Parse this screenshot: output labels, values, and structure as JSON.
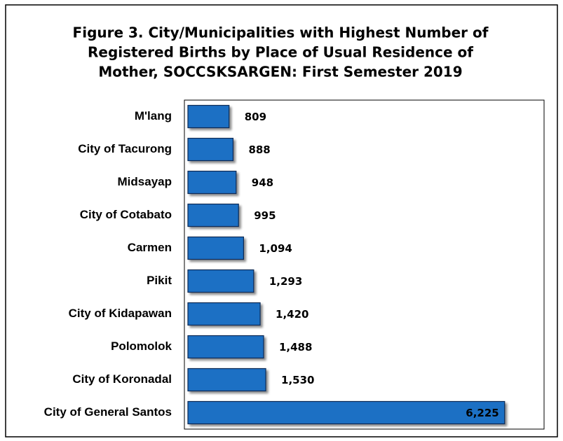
{
  "chart_data": {
    "type": "bar",
    "orientation": "horizontal",
    "title": [
      "Figure 3. City/Municipalities with Highest Number of",
      "Registered Births by Place of Usual Residence of",
      "Mother, SOCCSKSARGEN:  First Semester 2019"
    ],
    "categories": [
      "M'lang",
      "City of Tacurong",
      "Midsayap",
      "City of Cotabato",
      "Carmen",
      "Pikit",
      "City of Kidapawan",
      "Polomolok",
      "City of Koronadal",
      "City of General Santos"
    ],
    "values": [
      809,
      888,
      948,
      995,
      1094,
      1293,
      1420,
      1488,
      1530,
      6225
    ],
    "value_labels": [
      "809",
      "888",
      "948",
      "995",
      "1,094",
      "1,293",
      "1,420",
      "1,488",
      "1,530",
      "6,225"
    ],
    "color": "#1f6fc4",
    "xlim": [
      0,
      7000
    ]
  }
}
